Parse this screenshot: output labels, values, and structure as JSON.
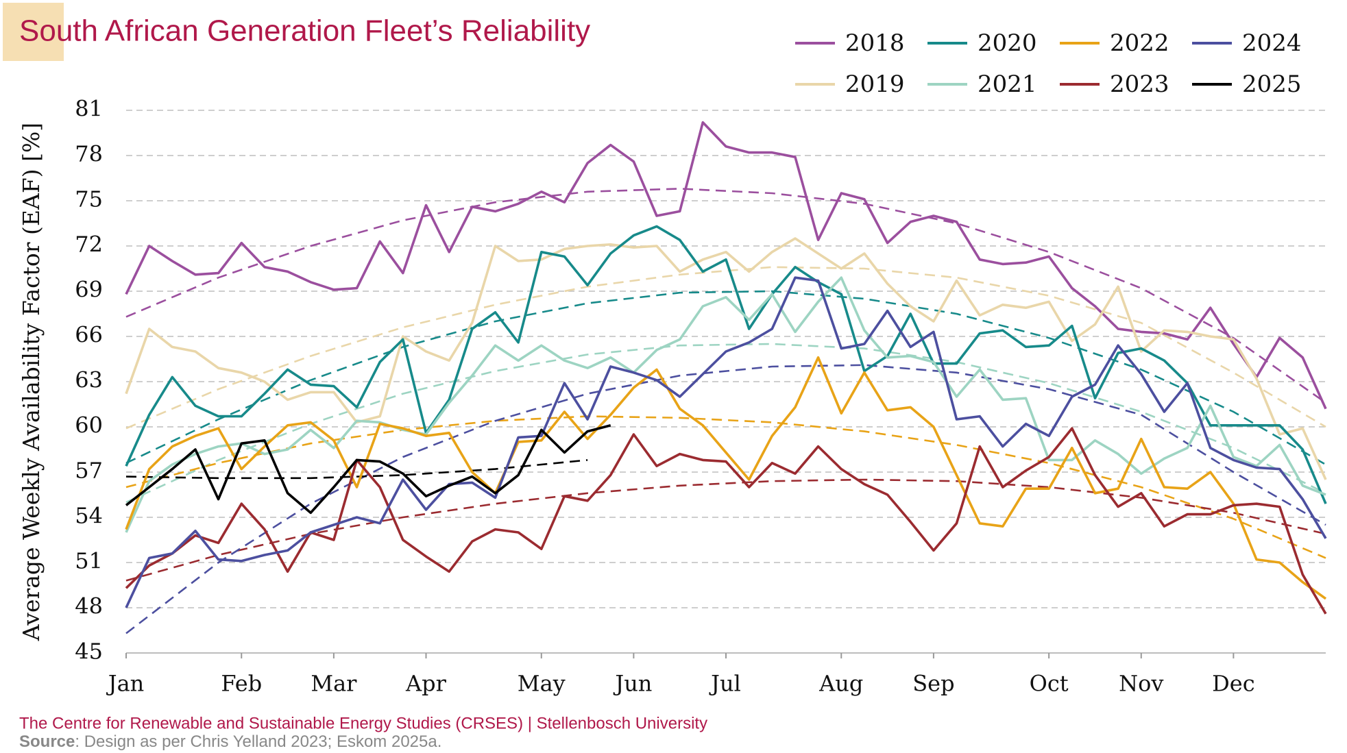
{
  "chart_data": {
    "type": "line",
    "title": "South African Generation Fleet’s Reliability",
    "y_label": "Average Weekly Availability Factor (EAF) [%]",
    "credit": "The Centre for Renewable and Sustainable Energy Studies (CRSES) | Stellenbosch University",
    "source_label": "Source",
    "source_text": ": Design as per Chris Yelland 2023; Eskom 2025a.",
    "ylim": [
      45,
      81
    ],
    "yticks": [
      45,
      48,
      51,
      54,
      57,
      60,
      63,
      66,
      69,
      72,
      75,
      78,
      81
    ],
    "xlim": [
      0,
      52
    ],
    "xticks": [
      {
        "value": 0,
        "label": "Jan"
      },
      {
        "value": 5,
        "label": "Feb"
      },
      {
        "value": 9,
        "label": "Mar"
      },
      {
        "value": 13,
        "label": "Apr"
      },
      {
        "value": 18,
        "label": "May"
      },
      {
        "value": 22,
        "label": "Jun"
      },
      {
        "value": 26,
        "label": "Jul"
      },
      {
        "value": 31,
        "label": "Aug"
      },
      {
        "value": 35,
        "label": "Sep"
      },
      {
        "value": 40,
        "label": "Oct"
      },
      {
        "value": 44,
        "label": "Nov"
      },
      {
        "value": 48,
        "label": "Dec"
      }
    ],
    "grid": true,
    "legend": "top-right",
    "x": [
      0,
      1,
      2,
      3,
      4,
      5,
      6,
      7,
      8,
      9,
      10,
      11,
      12,
      13,
      14,
      15,
      16,
      17,
      18,
      19,
      20,
      21,
      22,
      23,
      24,
      25,
      26,
      27,
      28,
      29,
      30,
      31,
      32,
      33,
      34,
      35,
      36,
      37,
      38,
      39,
      40,
      41,
      42,
      43,
      44,
      45,
      46,
      47,
      48,
      49,
      50,
      51,
      52
    ],
    "trend_x": [
      0,
      4,
      8,
      12,
      16,
      20,
      24,
      28,
      32,
      36,
      40,
      44,
      48,
      52
    ],
    "series": [
      {
        "name": "2018",
        "color": "#9B4F9E",
        "values": [
          68.8,
          72.0,
          71.0,
          70.1,
          70.2,
          72.2,
          70.6,
          70.3,
          69.6,
          69.1,
          69.2,
          72.3,
          70.2,
          74.7,
          71.6,
          74.6,
          74.3,
          74.8,
          75.6,
          74.9,
          77.5,
          78.7,
          77.6,
          74.0,
          74.3,
          80.2,
          78.6,
          78.2,
          78.2,
          77.9,
          72.4,
          75.5,
          75.1,
          72.2,
          73.6,
          74.0,
          73.6,
          71.1,
          70.8,
          70.9,
          71.3,
          69.2,
          68.0,
          66.5,
          66.3,
          66.2,
          65.8,
          67.9,
          65.5,
          63.3,
          65.9,
          64.6,
          61.2
        ],
        "trend": [
          67.3,
          69.9,
          72.0,
          73.7,
          74.9,
          75.6,
          75.8,
          75.5,
          74.8,
          73.5,
          71.6,
          69.2,
          65.9,
          61.6
        ]
      },
      {
        "name": "2019",
        "color": "#E9D6A9",
        "values": [
          62.2,
          66.5,
          65.3,
          65.0,
          63.9,
          63.6,
          63.0,
          61.8,
          62.3,
          62.3,
          60.3,
          60.7,
          66.0,
          65.0,
          64.4,
          66.9,
          72.0,
          71.0,
          71.1,
          71.8,
          72.0,
          72.1,
          71.9,
          72.0,
          70.3,
          71.1,
          71.6,
          70.3,
          71.6,
          72.5,
          71.5,
          70.5,
          71.5,
          69.5,
          68.0,
          67.0,
          69.7,
          67.4,
          68.1,
          67.9,
          68.3,
          65.7,
          66.8,
          69.3,
          65.0,
          66.4,
          66.3,
          66.0,
          65.8,
          63.2,
          59.5,
          59.9,
          56.5
        ],
        "trend": [
          59.9,
          62.5,
          64.7,
          66.6,
          68.1,
          69.3,
          70.1,
          70.6,
          70.5,
          69.9,
          68.7,
          66.9,
          63.6,
          60.0
        ]
      },
      {
        "name": "2020",
        "color": "#178A8A",
        "values": [
          57.4,
          60.8,
          63.3,
          61.4,
          60.7,
          60.7,
          62.2,
          63.8,
          62.8,
          62.7,
          61.3,
          64.3,
          65.8,
          59.6,
          61.8,
          66.5,
          67.6,
          65.6,
          71.6,
          71.3,
          69.4,
          71.5,
          72.7,
          73.3,
          72.4,
          70.3,
          71.1,
          66.5,
          68.8,
          70.6,
          69.6,
          68.8,
          63.7,
          64.7,
          67.5,
          64.2,
          64.2,
          66.2,
          66.4,
          65.3,
          65.4,
          66.7,
          61.9,
          64.9,
          65.2,
          64.4,
          62.9,
          60.1,
          60.1,
          60.1,
          60.1,
          58.5,
          54.9
        ],
        "trend": [
          57.6,
          60.5,
          63.1,
          65.3,
          67.0,
          68.2,
          68.9,
          69.0,
          68.5,
          67.5,
          65.9,
          63.8,
          61.0,
          57.5
        ]
      },
      {
        "name": "2021",
        "color": "#9DD4C2",
        "values": [
          53.0,
          56.4,
          57.5,
          58.2,
          58.7,
          58.9,
          58.2,
          58.5,
          59.8,
          58.6,
          60.4,
          60.3,
          59.8,
          59.5,
          61.6,
          63.4,
          65.4,
          64.4,
          65.4,
          64.4,
          63.9,
          64.6,
          63.6,
          65.1,
          65.8,
          68.0,
          68.6,
          67.1,
          68.8,
          66.3,
          68.3,
          69.9,
          66.4,
          64.6,
          64.7,
          64.3,
          62.0,
          63.8,
          61.8,
          61.9,
          57.8,
          57.8,
          59.1,
          58.2,
          56.9,
          57.9,
          58.6,
          61.4,
          58.0,
          57.4,
          58.8,
          56.1,
          55.5
        ],
        "trend": [
          55.0,
          57.8,
          60.2,
          62.2,
          63.7,
          64.8,
          65.4,
          65.5,
          65.2,
          64.3,
          62.9,
          61.0,
          58.6,
          55.6
        ]
      },
      {
        "name": "2022",
        "color": "#E8A317",
        "values": [
          53.2,
          57.2,
          58.7,
          59.4,
          59.9,
          57.2,
          58.7,
          60.1,
          60.3,
          59.1,
          56.0,
          60.2,
          59.9,
          59.4,
          59.6,
          57.0,
          55.6,
          59.0,
          59.1,
          61.0,
          59.2,
          60.8,
          62.6,
          63.8,
          61.2,
          60.1,
          58.3,
          56.5,
          59.4,
          61.3,
          64.6,
          60.9,
          63.6,
          61.1,
          61.3,
          60.0,
          56.8,
          53.6,
          53.4,
          55.9,
          55.9,
          58.6,
          55.6,
          55.9,
          59.2,
          56.0,
          55.9,
          57.0,
          54.9,
          51.2,
          51.0,
          49.7,
          48.6
        ],
        "trend": [
          56.0,
          57.6,
          58.9,
          59.8,
          60.4,
          60.7,
          60.6,
          60.3,
          59.7,
          58.8,
          57.6,
          56.0,
          53.9,
          51.3
        ]
      },
      {
        "name": "2023",
        "color": "#9B2B30",
        "values": [
          49.3,
          50.8,
          51.6,
          52.8,
          52.3,
          54.9,
          53.2,
          50.4,
          53.0,
          52.5,
          57.8,
          56.0,
          52.5,
          51.4,
          50.4,
          52.4,
          53.2,
          53.0,
          51.9,
          55.4,
          55.1,
          56.8,
          59.5,
          57.4,
          58.2,
          57.8,
          57.7,
          56.0,
          57.6,
          56.9,
          58.7,
          57.2,
          56.2,
          55.5,
          53.7,
          51.8,
          53.6,
          58.7,
          56.0,
          57.1,
          58.0,
          59.9,
          56.8,
          54.7,
          55.6,
          53.4,
          54.2,
          54.2,
          54.8,
          54.9,
          54.7,
          50.2,
          47.6
        ],
        "trend": [
          49.8,
          51.5,
          52.9,
          54.0,
          54.9,
          55.6,
          56.1,
          56.4,
          56.5,
          56.4,
          56.0,
          55.3,
          54.3,
          52.9
        ]
      },
      {
        "name": "2024",
        "color": "#4C4F9F",
        "values": [
          48.0,
          51.3,
          51.6,
          53.1,
          51.2,
          51.1,
          51.5,
          51.8,
          53.0,
          53.5,
          54.0,
          53.6,
          56.5,
          54.5,
          56.2,
          56.3,
          55.3,
          59.3,
          59.4,
          62.9,
          60.5,
          64.0,
          63.6,
          63.1,
          62.0,
          63.5,
          65.0,
          65.6,
          66.5,
          69.9,
          69.7,
          65.2,
          65.5,
          67.7,
          65.3,
          66.3,
          60.5,
          60.7,
          58.7,
          60.2,
          59.4,
          62.0,
          62.8,
          65.4,
          63.5,
          61.0,
          62.9,
          58.6,
          57.8,
          57.3,
          57.2,
          55.2,
          52.6
        ],
        "trend": [
          46.3,
          51.0,
          54.9,
          58.0,
          60.4,
          62.2,
          63.4,
          64.0,
          64.1,
          63.6,
          62.5,
          60.8,
          57.0,
          53.5
        ]
      },
      {
        "name": "2025",
        "color": "#000000",
        "values": [
          54.8,
          56.0,
          57.2,
          58.5,
          55.2,
          58.9,
          59.1,
          55.6,
          54.3,
          56.0,
          57.8,
          57.7,
          56.9,
          55.4,
          56.1,
          56.7,
          55.6,
          56.8,
          59.8,
          58.3,
          59.7,
          60.1,
          null,
          null,
          null,
          null,
          null,
          null,
          null,
          null,
          null,
          null,
          null,
          null,
          null,
          null,
          null,
          null,
          null,
          null,
          null,
          null,
          null,
          null,
          null,
          null,
          null,
          null,
          null,
          null,
          null,
          null,
          null
        ],
        "trend": [
          56.7,
          56.6,
          56.6,
          56.8,
          57.2,
          57.8,
          null,
          null,
          null,
          null,
          null,
          null,
          null,
          null
        ]
      }
    ]
  }
}
